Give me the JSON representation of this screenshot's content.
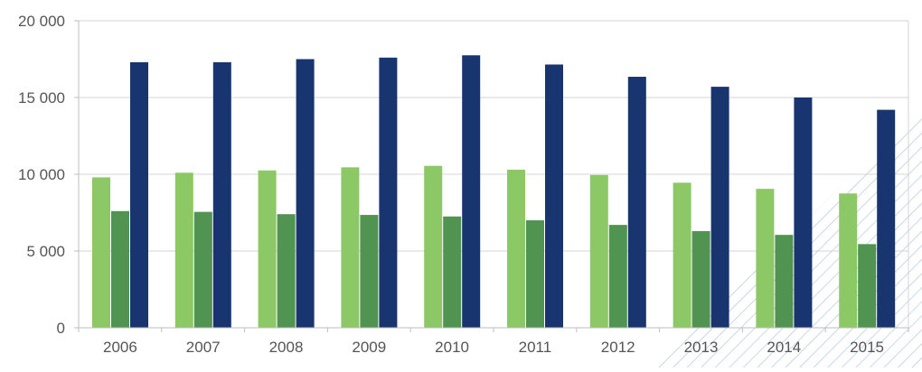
{
  "chart_data": {
    "type": "bar",
    "categories": [
      "2006",
      "2007",
      "2008",
      "2009",
      "2010",
      "2011",
      "2012",
      "2013",
      "2014",
      "2015"
    ],
    "series": [
      {
        "color": "#8dc866",
        "values": [
          9800,
          10100,
          10250,
          10450,
          10550,
          10300,
          9950,
          9450,
          9050,
          8750
        ]
      },
      {
        "color": "#519350",
        "values": [
          7600,
          7550,
          7400,
          7350,
          7250,
          7000,
          6700,
          6300,
          6050,
          5450
        ]
      },
      {
        "color": "#18356f",
        "values": [
          17300,
          17300,
          17500,
          17600,
          17750,
          17150,
          16350,
          15700,
          15000,
          14200
        ]
      }
    ],
    "yticks": [
      0,
      5000,
      10000,
      15000,
      20000
    ],
    "ytick_labels": [
      "0",
      "5 000",
      "10 000",
      "15 000",
      "20 000"
    ],
    "ylim": [
      0,
      20000
    ],
    "grid": true,
    "hatched_categories": [
      "2013",
      "2014",
      "2015"
    ],
    "hatch_color": "#a9c4d8",
    "grid_color": "#d4d4d4",
    "axis_color": "#bdbdbd"
  }
}
